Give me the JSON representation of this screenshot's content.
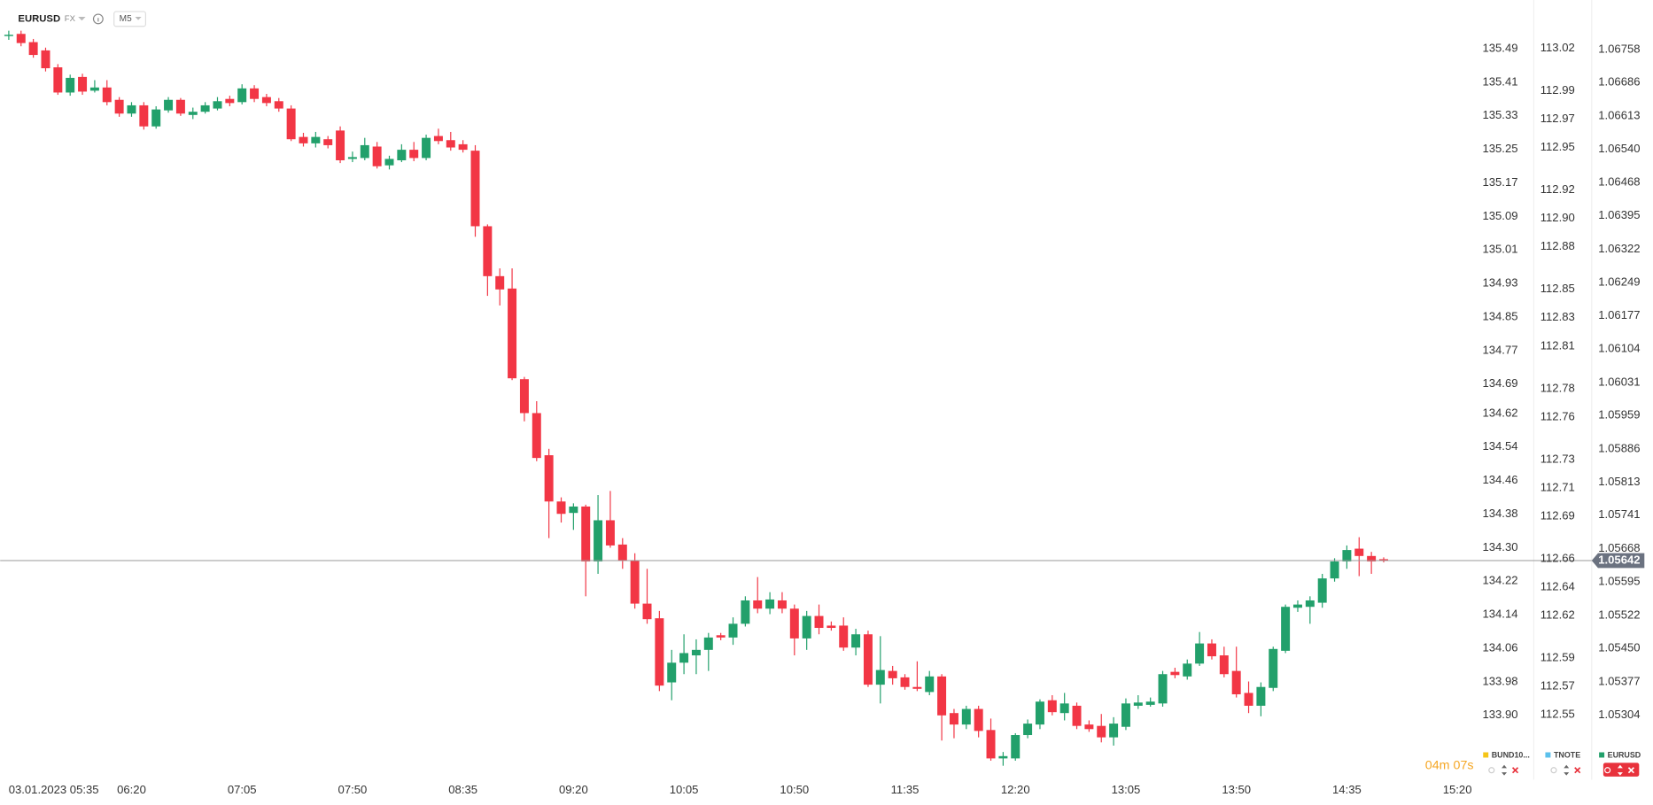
{
  "header": {
    "symbol": "EURUSD",
    "market": "FX",
    "timeframe": "M5"
  },
  "chart_data": {
    "type": "candlestick",
    "up_color": "#22a06b",
    "down_color": "#f23645",
    "ohlc": [
      [
        1.06788,
        1.06799,
        1.06779,
        1.0679
      ],
      [
        1.06792,
        1.06799,
        1.06765,
        1.06772
      ],
      [
        1.06774,
        1.06781,
        1.0674,
        1.06746
      ],
      [
        1.06756,
        1.06762,
        1.0671,
        1.06717
      ],
      [
        1.06719,
        1.06726,
        1.06659,
        1.06664
      ],
      [
        1.06664,
        1.06703,
        1.06657,
        1.06696
      ],
      [
        1.06698,
        1.06705,
        1.06659,
        1.06666
      ],
      [
        1.06668,
        1.06691,
        1.06664,
        1.06675
      ],
      [
        1.06675,
        1.06691,
        1.06636,
        1.06643
      ],
      [
        1.06648,
        1.06654,
        1.06611,
        1.06618
      ],
      [
        1.06618,
        1.06643,
        1.06611,
        1.06636
      ],
      [
        1.06636,
        1.06643,
        1.06583,
        1.0659
      ],
      [
        1.0659,
        1.06634,
        1.06585,
        1.06627
      ],
      [
        1.06625,
        1.06654,
        1.0662,
        1.06648
      ],
      [
        1.06648,
        1.06652,
        1.06613,
        1.06618
      ],
      [
        1.06615,
        1.06631,
        1.06606,
        1.06622
      ],
      [
        1.06622,
        1.06643,
        1.06618,
        1.06636
      ],
      [
        1.06629,
        1.06654,
        1.06625,
        1.06645
      ],
      [
        1.0665,
        1.06657,
        1.06634,
        1.06641
      ],
      [
        1.06643,
        1.06682,
        1.06638,
        1.06673
      ],
      [
        1.06673,
        1.0668,
        1.06643,
        1.0665
      ],
      [
        1.06654,
        1.06661,
        1.06634,
        1.06641
      ],
      [
        1.06645,
        1.06652,
        1.06622,
        1.06629
      ],
      [
        1.06629,
        1.06636,
        1.06558,
        1.06562
      ],
      [
        1.06567,
        1.06576,
        1.06546,
        1.06553
      ],
      [
        1.06553,
        1.06578,
        1.06544,
        1.06567
      ],
      [
        1.06562,
        1.06569,
        1.06542,
        1.06549
      ],
      [
        1.06581,
        1.0659,
        1.0651,
        1.06516
      ],
      [
        1.06519,
        1.06535,
        1.06512,
        1.06523
      ],
      [
        1.06521,
        1.06565,
        1.06516,
        1.06549
      ],
      [
        1.06546,
        1.06556,
        1.06498,
        1.06503
      ],
      [
        1.06505,
        1.06526,
        1.06496,
        1.06519
      ],
      [
        1.06516,
        1.06551,
        1.06512,
        1.06539
      ],
      [
        1.06539,
        1.06556,
        1.06514,
        1.06521
      ],
      [
        1.06521,
        1.06572,
        1.06516,
        1.06565
      ],
      [
        1.06569,
        1.06585,
        1.06551,
        1.06558
      ],
      [
        1.0656,
        1.06578,
        1.06537,
        1.06544
      ],
      [
        1.06551,
        1.0656,
        1.06533,
        1.06539
      ],
      [
        1.06537,
        1.06549,
        1.06349,
        1.06372
      ],
      [
        1.06372,
        1.06376,
        1.0622,
        1.06263
      ],
      [
        1.06263,
        1.0628,
        1.06199,
        1.06234
      ],
      [
        1.06236,
        1.0628,
        1.06036,
        1.0604
      ],
      [
        1.06038,
        1.06043,
        1.05946,
        1.05964
      ],
      [
        1.05964,
        1.0599,
        1.05859,
        1.05866
      ],
      [
        1.05872,
        1.05886,
        1.05691,
        1.05771
      ],
      [
        1.05771,
        1.0578,
        1.05725,
        1.05744
      ],
      [
        1.05746,
        1.05767,
        1.05709,
        1.0576
      ],
      [
        1.0576,
        1.05764,
        1.05564,
        1.0564
      ],
      [
        1.0564,
        1.05785,
        1.05613,
        1.0573
      ],
      [
        1.0573,
        1.05794,
        1.0567,
        1.05675
      ],
      [
        1.05677,
        1.05691,
        1.05624,
        1.05642
      ],
      [
        1.05642,
        1.05658,
        1.05537,
        1.05548
      ],
      [
        1.05548,
        1.05624,
        1.05504,
        1.05514
      ],
      [
        1.05516,
        1.05532,
        1.05357,
        1.05369
      ],
      [
        1.05376,
        1.05447,
        1.05337,
        1.05419
      ],
      [
        1.05419,
        1.05481,
        1.05394,
        1.0544
      ],
      [
        1.05435,
        1.0547,
        1.05394,
        1.05447
      ],
      [
        1.05447,
        1.05484,
        1.05401,
        1.05474
      ],
      [
        1.05479,
        1.05484,
        1.05468,
        1.05474
      ],
      [
        1.05474,
        1.05518,
        1.05458,
        1.05504
      ],
      [
        1.05504,
        1.05564,
        1.05498,
        1.05555
      ],
      [
        1.05555,
        1.05606,
        1.05527,
        1.05537
      ],
      [
        1.05537,
        1.05573,
        1.05525,
        1.05557
      ],
      [
        1.05555,
        1.05573,
        1.05527,
        1.05537
      ],
      [
        1.05537,
        1.05546,
        1.05435,
        1.05472
      ],
      [
        1.05472,
        1.05532,
        1.05447,
        1.05521
      ],
      [
        1.05521,
        1.05546,
        1.05481,
        1.05495
      ],
      [
        1.055,
        1.05509,
        1.05489,
        1.05495
      ],
      [
        1.055,
        1.05518,
        1.05445,
        1.05452
      ],
      [
        1.05452,
        1.05493,
        1.05435,
        1.05481
      ],
      [
        1.05481,
        1.05489,
        1.05366,
        1.05371
      ],
      [
        1.05371,
        1.05477,
        1.0533,
        1.05403
      ],
      [
        1.05401,
        1.05412,
        1.05371,
        1.05385
      ],
      [
        1.05387,
        1.05394,
        1.0536,
        1.05366
      ],
      [
        1.05366,
        1.05422,
        1.05357,
        1.05362
      ],
      [
        1.05355,
        1.05401,
        1.05348,
        1.05389
      ],
      [
        1.05389,
        1.05394,
        1.05249,
        1.05304
      ],
      [
        1.05309,
        1.05318,
        1.05254,
        1.05284
      ],
      [
        1.05284,
        1.05325,
        1.05274,
        1.05318
      ],
      [
        1.05318,
        1.05325,
        1.05256,
        1.0527
      ],
      [
        1.05272,
        1.05297,
        1.05205,
        1.0521
      ],
      [
        1.0521,
        1.05224,
        1.05194,
        1.05215
      ],
      [
        1.0521,
        1.05265,
        1.05205,
        1.05261
      ],
      [
        1.05261,
        1.05295,
        1.05254,
        1.05286
      ],
      [
        1.05284,
        1.05339,
        1.05274,
        1.05334
      ],
      [
        1.05337,
        1.05348,
        1.05304,
        1.05311
      ],
      [
        1.05309,
        1.05353,
        1.05293,
        1.0533
      ],
      [
        1.05325,
        1.05332,
        1.05274,
        1.05281
      ],
      [
        1.05284,
        1.05293,
        1.05268,
        1.05274
      ],
      [
        1.05281,
        1.05307,
        1.05245,
        1.05256
      ],
      [
        1.05256,
        1.053,
        1.05238,
        1.05286
      ],
      [
        1.05279,
        1.05341,
        1.05272,
        1.0533
      ],
      [
        1.05325,
        1.05348,
        1.05318,
        1.05332
      ],
      [
        1.05327,
        1.05343,
        1.05323,
        1.05334
      ],
      [
        1.0533,
        1.05401,
        1.05323,
        1.05394
      ],
      [
        1.05399,
        1.05408,
        1.05385,
        1.05392
      ],
      [
        1.05389,
        1.05426,
        1.05382,
        1.05417
      ],
      [
        1.05417,
        1.05486,
        1.05412,
        1.05461
      ],
      [
        1.05461,
        1.0547,
        1.05426,
        1.05433
      ],
      [
        1.05435,
        1.05454,
        1.05387,
        1.05394
      ],
      [
        1.05401,
        1.05454,
        1.05343,
        1.0535
      ],
      [
        1.05353,
        1.05378,
        1.05309,
        1.05325
      ],
      [
        1.05325,
        1.05376,
        1.05302,
        1.05366
      ],
      [
        1.05364,
        1.05454,
        1.05357,
        1.05449
      ],
      [
        1.05445,
        1.05546,
        1.0544,
        1.05541
      ],
      [
        1.05539,
        1.05555,
        1.0553,
        1.05546
      ],
      [
        1.05541,
        1.05564,
        1.05504,
        1.05555
      ],
      [
        1.0555,
        1.05613,
        1.05539,
        1.05603
      ],
      [
        1.05603,
        1.05647,
        1.05596,
        1.0564
      ],
      [
        1.0564,
        1.05675,
        1.05624,
        1.05665
      ],
      [
        1.05668,
        1.05693,
        1.05608,
        1.05652
      ],
      [
        1.05652,
        1.05661,
        1.05613,
        1.0564
      ],
      [
        1.05645,
        1.05649,
        1.05638,
        1.05642
      ]
    ],
    "xlim": [
      -0.7,
      119.5
    ],
    "xticks": [
      {
        "value": 1,
        "label": "03.01.2023 05:35"
      },
      {
        "value": 10,
        "label": "06:20"
      },
      {
        "value": 19,
        "label": "07:05"
      },
      {
        "value": 28,
        "label": "07:50"
      },
      {
        "value": 37,
        "label": "08:35"
      },
      {
        "value": 46,
        "label": "09:20"
      },
      {
        "value": 55,
        "label": "10:05"
      },
      {
        "value": 64,
        "label": "10:50"
      },
      {
        "value": 73,
        "label": "11:35"
      },
      {
        "value": 82,
        "label": "12:20"
      },
      {
        "value": 91,
        "label": "13:05"
      },
      {
        "value": 100,
        "label": "13:50"
      },
      {
        "value": 109,
        "label": "14:35"
      },
      {
        "value": 118,
        "label": "15:20"
      }
    ],
    "ylim": [
      1.05175,
      1.06866
    ],
    "yticks": [
      1.06758,
      1.06686,
      1.06613,
      {
        "value": 1.0654,
        "label": "1.06540"
      },
      1.06468,
      1.06395,
      1.06322,
      1.06249,
      1.06177,
      1.06104,
      1.06031,
      1.05959,
      1.05886,
      1.05813,
      1.05741,
      1.05668,
      1.05595,
      1.05522,
      {
        "value": 1.0545,
        "label": "1.05450"
      },
      1.05377,
      1.05304
    ],
    "y2lim": [
      112.508,
      113.054
    ],
    "y2ticks": [
      113.02,
      112.99,
      112.97,
      112.95,
      112.92,
      {
        "value": 112.9,
        "label": "112.90"
      },
      112.88,
      112.85,
      112.83,
      112.81,
      112.78,
      112.76,
      112.73,
      112.71,
      112.69,
      112.66,
      112.64,
      112.62,
      112.59,
      112.57,
      112.55
    ],
    "y3lim": [
      133.759,
      135.606
    ],
    "y3ticks": [
      135.49,
      135.41,
      135.33,
      135.25,
      135.17,
      135.09,
      135.01,
      134.93,
      134.85,
      134.77,
      134.69,
      134.62,
      134.54,
      134.46,
      134.38,
      {
        "value": 134.3,
        "label": "134.30"
      },
      134.22,
      134.14,
      134.06,
      133.98,
      {
        "value": 133.9,
        "label": "133.90"
      }
    ],
    "last_price": 1.05642,
    "countdown": "04m 07s",
    "legend": [
      {
        "name": "BUND10...",
        "color": "#f5c518"
      },
      {
        "name": "TNOTE",
        "color": "#5bc0eb"
      },
      {
        "name": "EURUSD",
        "color": "#22a06b"
      }
    ]
  }
}
